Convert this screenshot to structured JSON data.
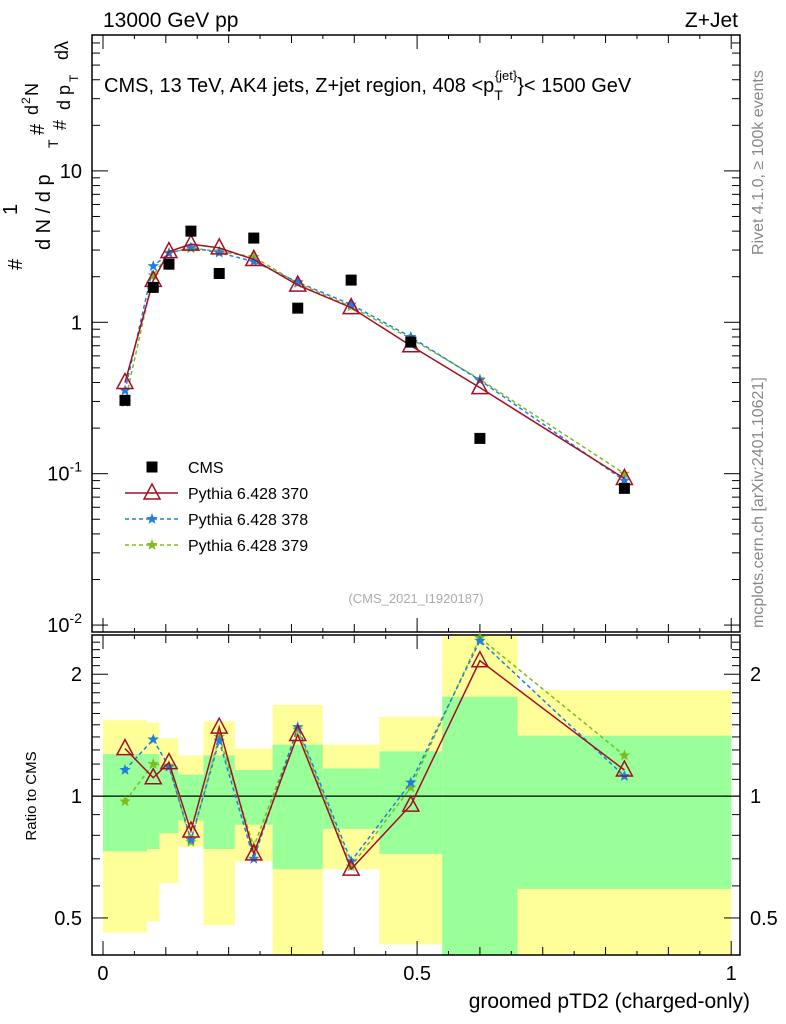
{
  "header": {
    "left": "13000 GeV pp",
    "right": "Z+Jet"
  },
  "side": {
    "rivet": "Rivet 4.1.0, ≥ 100k events",
    "mcplots": "mcplots.cern.ch [arXiv:2401.10621]"
  },
  "chart_data": {
    "type": "line",
    "title": "CMS, 13 TeV, AK4 jets, Z+jet region, 408 <p_T^{jet}< 1500 GeV",
    "title_parts": {
      "pre": "CMS, 13 TeV, AK4 jets, Z+jet region, 408 <p",
      "sub": "T",
      "sup": "{jet}",
      "post": "}< 1500 GeV"
    },
    "watermark": "(CMS_2021_I1920187)",
    "xlabel": "groomed pTD2 (charged-only)",
    "ylabel": "1/N dN/dλ",
    "ylabel_parts": {
      "a": "#",
      "b": "1",
      "c": "d N / d p",
      "d": "T",
      "e": "#",
      "f": "d",
      "g": "2",
      "h": "N",
      "i": "#",
      "j": "d p",
      "k": "T",
      "l": "dλ"
    },
    "ratio_ylabel": "Ratio to CMS",
    "xlim": [
      -0.0175,
      1.014
    ],
    "ylim": [
      0.009,
      79
    ],
    "yscale": "log",
    "ratio_ylim": [
      0.405,
      2.5
    ],
    "xticks": [
      "0",
      "0.5",
      "1"
    ],
    "xtick_values": [
      0,
      0.5,
      1
    ],
    "yticks": [
      "10^{-2}",
      "10^{-1}",
      "1",
      "10"
    ],
    "ytick_values": [
      0.01,
      0.1,
      1,
      10
    ],
    "ratio_yticks": [
      "0.5",
      "1",
      "2"
    ],
    "ratio_ytick_values": [
      0.5,
      1,
      2
    ],
    "legend_position": "lower-left",
    "bin_edges": [
      0,
      0.07,
      0.09,
      0.12,
      0.16,
      0.21,
      0.27,
      0.35,
      0.44,
      0.54,
      0.66,
      1.0
    ],
    "x": [
      0.035,
      0.08,
      0.105,
      0.14,
      0.185,
      0.24,
      0.31,
      0.395,
      0.49,
      0.6,
      0.83
    ],
    "series": [
      {
        "name": "CMS",
        "color": "#000000",
        "marker": "square",
        "values": [
          0.305,
          1.7,
          2.42,
          4.0,
          2.1,
          3.6,
          1.24,
          1.9,
          0.74,
          0.171,
          0.08
        ]
      },
      {
        "name": "Pythia 6.428 370",
        "color": "#a50f25",
        "marker": "triangle",
        "dash": "",
        "values": [
          0.4,
          1.89,
          2.93,
          3.28,
          3.1,
          2.6,
          1.76,
          1.25,
          0.7,
          0.37,
          0.093
        ],
        "ratio": [
          1.31,
          1.11,
          1.21,
          0.82,
          1.48,
          0.72,
          1.42,
          0.66,
          0.95,
          2.16,
          1.16
        ]
      },
      {
        "name": "Pythia 6.428 378",
        "color": "#1e7fe0",
        "marker": "star",
        "dash": "4,3",
        "values": [
          0.354,
          2.35,
          2.86,
          3.12,
          2.88,
          2.52,
          1.84,
          1.31,
          0.8,
          0.414,
          0.09
        ],
        "ratio": [
          1.16,
          1.38,
          1.18,
          0.78,
          1.37,
          0.7,
          1.48,
          0.69,
          1.08,
          2.42,
          1.12
        ]
      },
      {
        "name": "Pythia 6.428 379",
        "color": "#7fbb1e",
        "marker": "star",
        "dash": "4,3",
        "values": [
          0.296,
          2.04,
          2.88,
          3.08,
          2.94,
          2.7,
          1.81,
          1.27,
          0.78,
          0.42,
          0.1
        ],
        "ratio": [
          0.97,
          1.2,
          1.19,
          0.77,
          1.4,
          0.75,
          1.46,
          0.67,
          1.05,
          2.46,
          1.26
        ]
      }
    ],
    "uncertainty_bands": {
      "yellow_color": "#ffff99",
      "green_color": "#99ff99",
      "yellow": [
        [
          0.46,
          1.54
        ],
        [
          0.49,
          1.52
        ],
        [
          0.61,
          1.39
        ],
        [
          0.75,
          1.26
        ],
        [
          0.48,
          1.53
        ],
        [
          0.69,
          1.31
        ],
        [
          0.3,
          1.68
        ],
        [
          0.66,
          1.34
        ],
        [
          0.43,
          1.57
        ],
        [
          0.3,
          2.6
        ],
        [
          0.3,
          1.83
        ]
      ],
      "green": [
        [
          0.73,
          1.27
        ],
        [
          0.74,
          1.27
        ],
        [
          0.81,
          1.19
        ],
        [
          0.87,
          1.13
        ],
        [
          0.74,
          1.26
        ],
        [
          0.85,
          1.16
        ],
        [
          0.66,
          1.34
        ],
        [
          0.83,
          1.17
        ],
        [
          0.72,
          1.29
        ],
        [
          0.3,
          1.76
        ],
        [
          0.59,
          1.41
        ]
      ]
    }
  }
}
